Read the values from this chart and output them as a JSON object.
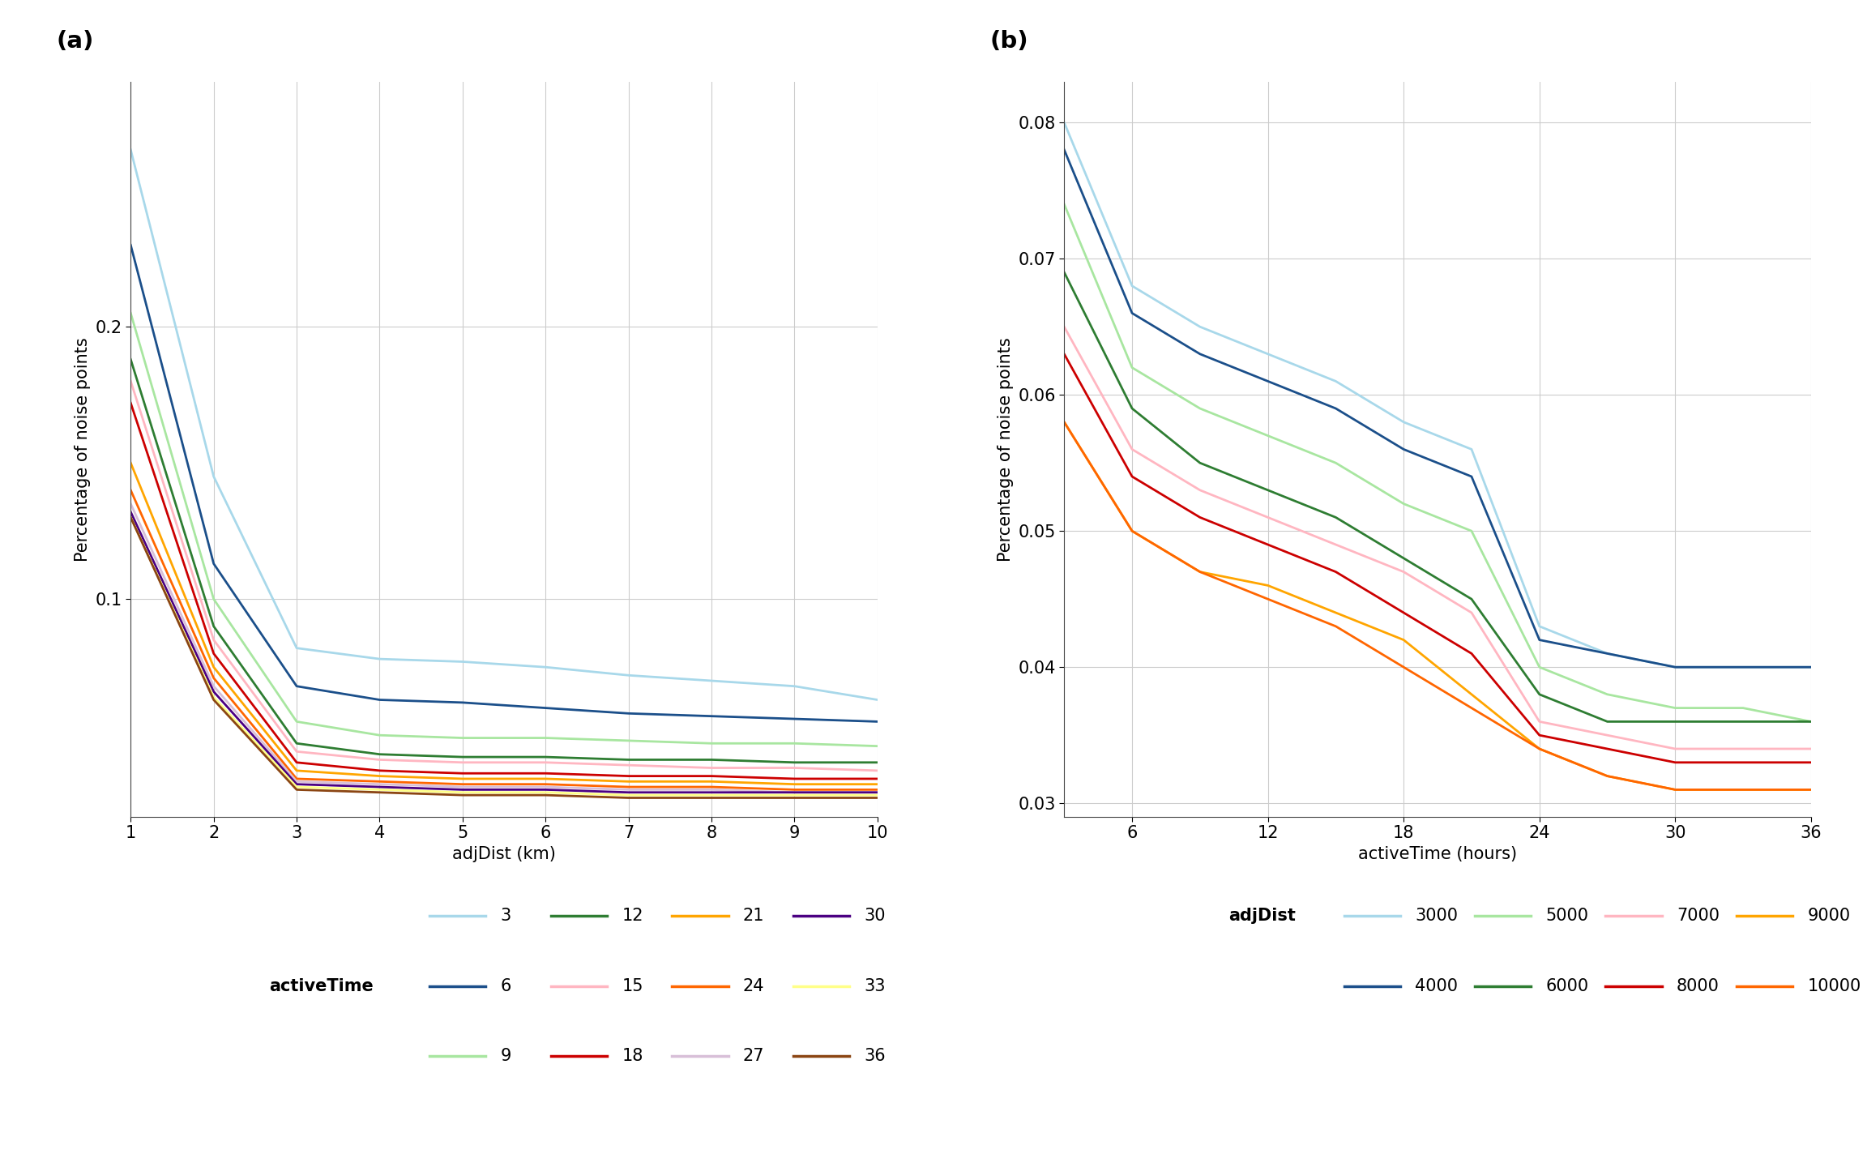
{
  "panel_a": {
    "title": "(a)",
    "xlabel": "adjDist (km)",
    "ylabel": "Percentage of noise points",
    "x": [
      1,
      2,
      3,
      4,
      5,
      6,
      7,
      8,
      9,
      10
    ],
    "series": {
      "3": [
        0.265,
        0.145,
        0.082,
        0.078,
        0.077,
        0.075,
        0.072,
        0.07,
        0.068,
        0.063
      ],
      "6": [
        0.23,
        0.113,
        0.068,
        0.063,
        0.062,
        0.06,
        0.058,
        0.057,
        0.056,
        0.055
      ],
      "9": [
        0.205,
        0.1,
        0.055,
        0.05,
        0.049,
        0.049,
        0.048,
        0.047,
        0.047,
        0.046
      ],
      "12": [
        0.188,
        0.09,
        0.047,
        0.043,
        0.042,
        0.042,
        0.041,
        0.041,
        0.04,
        0.04
      ],
      "15": [
        0.18,
        0.085,
        0.044,
        0.041,
        0.04,
        0.04,
        0.039,
        0.038,
        0.038,
        0.037
      ],
      "18": [
        0.172,
        0.08,
        0.04,
        0.037,
        0.036,
        0.036,
        0.035,
        0.035,
        0.034,
        0.034
      ],
      "21": [
        0.15,
        0.075,
        0.037,
        0.035,
        0.034,
        0.034,
        0.033,
        0.033,
        0.032,
        0.032
      ],
      "24": [
        0.14,
        0.071,
        0.034,
        0.033,
        0.032,
        0.032,
        0.031,
        0.031,
        0.03,
        0.03
      ],
      "27": [
        0.135,
        0.068,
        0.033,
        0.032,
        0.031,
        0.031,
        0.03,
        0.03,
        0.029,
        0.029
      ],
      "30": [
        0.132,
        0.066,
        0.032,
        0.031,
        0.03,
        0.03,
        0.029,
        0.029,
        0.029,
        0.029
      ],
      "33": [
        0.13,
        0.064,
        0.031,
        0.03,
        0.029,
        0.029,
        0.028,
        0.028,
        0.028,
        0.028
      ],
      "36": [
        0.13,
        0.063,
        0.03,
        0.029,
        0.028,
        0.028,
        0.027,
        0.027,
        0.027,
        0.027
      ]
    },
    "colors": {
      "3": "#A8D8EA",
      "6": "#1B4F8A",
      "9": "#A8E6A0",
      "12": "#2E7D32",
      "15": "#FFB6C1",
      "18": "#CC0000",
      "21": "#FFA500",
      "24": "#FF6600",
      "27": "#D8BFD8",
      "30": "#4B0082",
      "33": "#FFFF88",
      "36": "#8B4513"
    },
    "ylim_low": 0.02,
    "ylim_high": 0.29,
    "yticks": [
      0.1,
      0.2
    ],
    "xticks": [
      1,
      2,
      3,
      4,
      5,
      6,
      7,
      8,
      9,
      10
    ]
  },
  "panel_b": {
    "title": "(b)",
    "xlabel": "activeTime (hours)",
    "ylabel": "Percentage of noise points",
    "x": [
      3,
      6,
      9,
      12,
      15,
      18,
      21,
      24,
      27,
      30,
      33,
      36
    ],
    "series": {
      "3000": [
        0.08,
        0.068,
        0.065,
        0.063,
        0.061,
        0.058,
        0.056,
        0.043,
        0.041,
        0.04,
        0.04,
        0.04
      ],
      "4000": [
        0.078,
        0.066,
        0.063,
        0.061,
        0.059,
        0.056,
        0.054,
        0.042,
        0.041,
        0.04,
        0.04,
        0.04
      ],
      "5000": [
        0.074,
        0.062,
        0.059,
        0.057,
        0.055,
        0.052,
        0.05,
        0.04,
        0.038,
        0.037,
        0.037,
        0.036
      ],
      "6000": [
        0.069,
        0.059,
        0.055,
        0.053,
        0.051,
        0.048,
        0.045,
        0.038,
        0.036,
        0.036,
        0.036,
        0.036
      ],
      "7000": [
        0.065,
        0.056,
        0.053,
        0.051,
        0.049,
        0.047,
        0.044,
        0.036,
        0.035,
        0.034,
        0.034,
        0.034
      ],
      "8000": [
        0.063,
        0.054,
        0.051,
        0.049,
        0.047,
        0.044,
        0.041,
        0.035,
        0.034,
        0.033,
        0.033,
        0.033
      ],
      "9000": [
        0.058,
        0.05,
        0.047,
        0.046,
        0.044,
        0.042,
        0.038,
        0.034,
        0.032,
        0.031,
        0.031,
        0.031
      ],
      "10000": [
        0.058,
        0.05,
        0.047,
        0.045,
        0.043,
        0.04,
        0.037,
        0.034,
        0.032,
        0.031,
        0.031,
        0.031
      ]
    },
    "colors": {
      "3000": "#A8D8EA",
      "4000": "#1B4F8A",
      "5000": "#A8E6A0",
      "6000": "#2E7D32",
      "7000": "#FFB6C1",
      "8000": "#CC0000",
      "9000": "#FFA500",
      "10000": "#FF6600"
    },
    "ylim_low": 0.029,
    "ylim_high": 0.083,
    "yticks": [
      0.03,
      0.04,
      0.05,
      0.06,
      0.07,
      0.08
    ],
    "xticks": [
      6,
      12,
      18,
      24,
      30,
      36
    ]
  },
  "background_color": "#ffffff",
  "grid_color": "#cccccc",
  "font_size": 15,
  "line_width": 2.0,
  "legend_a": {
    "title": "activeTime",
    "row1": [
      [
        "3",
        "#A8D8EA"
      ],
      [
        "12",
        "#2E7D32"
      ],
      [
        "21",
        "#FFA500"
      ],
      [
        "30",
        "#4B0082"
      ]
    ],
    "row2": [
      [
        "6",
        "#1B4F8A"
      ],
      [
        "15",
        "#FFB6C1"
      ],
      [
        "24",
        "#FF6600"
      ],
      [
        "33",
        "#FFFF88"
      ]
    ],
    "row3": [
      [
        "9",
        "#A8E6A0"
      ],
      [
        "18",
        "#CC0000"
      ],
      [
        "27",
        "#D8BFD8"
      ],
      [
        "36",
        "#8B4513"
      ]
    ]
  },
  "legend_b": {
    "title": "adjDist",
    "row1": [
      [
        "3000",
        "#A8D8EA"
      ],
      [
        "5000",
        "#A8E6A0"
      ],
      [
        "7000",
        "#FFB6C1"
      ],
      [
        "9000",
        "#FFA500"
      ]
    ],
    "row2": [
      [
        "4000",
        "#1B4F8A"
      ],
      [
        "6000",
        "#2E7D32"
      ],
      [
        "8000",
        "#CC0000"
      ],
      [
        "10000",
        "#FF6600"
      ]
    ]
  }
}
